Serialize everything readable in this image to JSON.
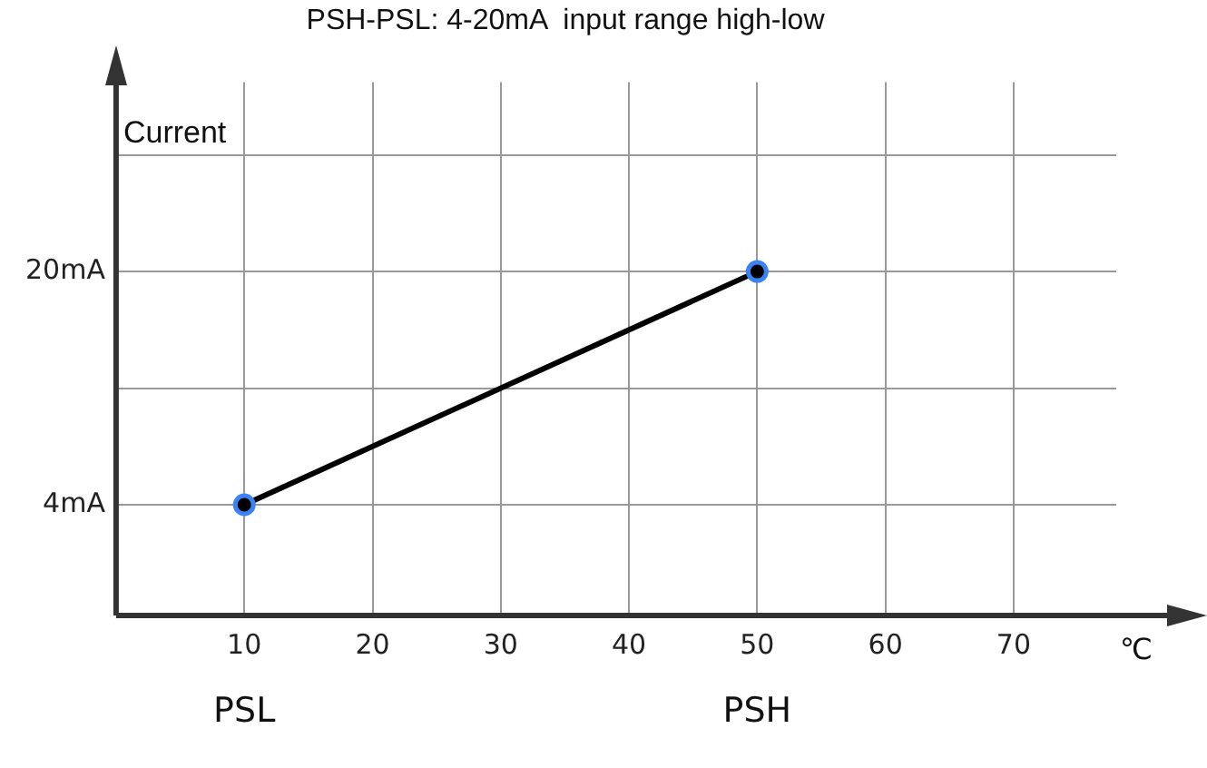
{
  "chart_data": {
    "type": "line",
    "title": "PSH-PSL: 4-20mA  input range high-low",
    "xlabel": "℃",
    "ylabel": "Current",
    "x": [
      10,
      50
    ],
    "series": [
      {
        "color": "#000000",
        "values": [
          4,
          20
        ]
      }
    ],
    "xlim": [
      0,
      78
    ],
    "xticks": [
      10,
      20,
      30,
      40,
      50,
      60,
      70
    ],
    "ylim": [
      -3.6,
      33
    ],
    "yticks": [
      {
        "value": 4,
        "label": "4mA"
      },
      {
        "value": 12,
        "label": null
      },
      {
        "value": 20,
        "label": "20mA"
      },
      {
        "value": 28,
        "label": null
      }
    ],
    "annotations": [
      "PSL",
      "PSH"
    ],
    "grid": true,
    "legend": false,
    "marker": "circle",
    "line_style": "solid"
  }
}
